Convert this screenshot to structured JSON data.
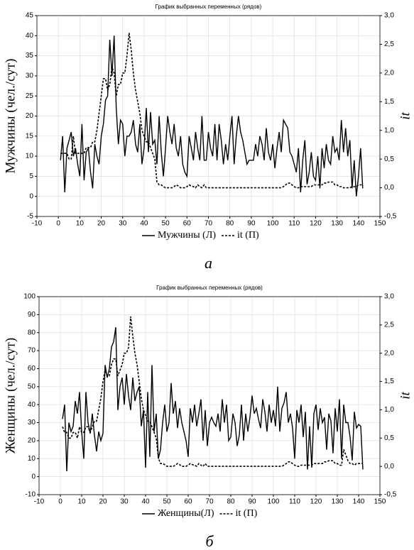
{
  "chart_data": [
    {
      "type": "line",
      "title": "График выбранных переменных (рядов)",
      "ylabel": "Мужчины (чел./сут)",
      "y2label": "it",
      "panel_label": "а",
      "grid": true,
      "x": [
        1,
        2,
        3,
        4,
        5,
        6,
        7,
        8,
        9,
        10,
        11,
        12,
        13,
        14,
        15,
        16,
        17,
        18,
        19,
        20,
        21,
        22,
        23,
        24,
        25,
        26,
        27,
        28,
        29,
        30,
        31,
        32,
        33,
        34,
        35,
        36,
        37,
        38,
        39,
        40,
        41,
        42,
        43,
        44,
        45,
        46,
        47,
        48,
        49,
        50,
        51,
        52,
        53,
        54,
        55,
        56,
        57,
        58,
        59,
        60,
        61,
        62,
        63,
        64,
        65,
        66,
        67,
        68,
        69,
        70,
        71,
        72,
        73,
        74,
        75,
        76,
        77,
        78,
        79,
        80,
        81,
        82,
        83,
        84,
        85,
        86,
        87,
        88,
        89,
        90,
        91,
        92,
        93,
        94,
        95,
        96,
        97,
        98,
        99,
        100,
        101,
        102,
        103,
        104,
        105,
        106,
        107,
        108,
        109,
        110,
        111,
        112,
        113,
        114,
        115,
        116,
        117,
        118,
        119,
        120,
        121,
        122,
        123,
        124,
        125,
        126,
        127,
        128,
        129,
        130,
        131,
        132,
        133,
        134,
        135,
        136,
        137,
        138,
        139,
        140,
        141,
        142
      ],
      "xlim": [
        -10,
        150
      ],
      "xticks": [
        -10,
        0,
        10,
        20,
        30,
        40,
        50,
        60,
        70,
        80,
        90,
        100,
        110,
        120,
        130,
        140,
        150
      ],
      "ylim": [
        -5,
        45
      ],
      "yticks": [
        -5,
        0,
        5,
        10,
        15,
        20,
        25,
        30,
        35,
        40,
        45
      ],
      "y2lim": [
        -0.5,
        3.0
      ],
      "y2ticks": [
        {
          "value": -0.5,
          "label": "-0,5"
        },
        {
          "value": 0,
          "label": "0,0"
        },
        {
          "value": 0.5,
          "label": "0,5"
        },
        {
          "value": 1,
          "label": "1,0"
        },
        {
          "value": 1.5,
          "label": "1,5"
        },
        {
          "value": 2,
          "label": "2,0"
        },
        {
          "value": 2.5,
          "label": "2,5"
        },
        {
          "value": 3,
          "label": "3,0"
        }
      ],
      "series": [
        {
          "name": "Мужчины (Л)",
          "color": "#000000",
          "line_style": "solid",
          "values": [
            9,
            15,
            1,
            12,
            14,
            16,
            10,
            12,
            8,
            5,
            18,
            4,
            11,
            12,
            6,
            2,
            13,
            10,
            8,
            15,
            18,
            24,
            25,
            39,
            30,
            40,
            22,
            13,
            19,
            18,
            10,
            15,
            15,
            16,
            19,
            13,
            11,
            18,
            8,
            12,
            22,
            11,
            21,
            13,
            14,
            8,
            20,
            11,
            5,
            12,
            20,
            16,
            13,
            18,
            12,
            10,
            15,
            8,
            6,
            5,
            15,
            12,
            9,
            16,
            12,
            9,
            20,
            9,
            9,
            16,
            12,
            10,
            18,
            9,
            18,
            14,
            8,
            13,
            9,
            15,
            20,
            8,
            15,
            20,
            16,
            14,
            11,
            8,
            9,
            9,
            9,
            13,
            10,
            15,
            13,
            9,
            17,
            11,
            9,
            13,
            7,
            12,
            16,
            11,
            19,
            18,
            17,
            11,
            10,
            8,
            6,
            12,
            1,
            9,
            14,
            3,
            6,
            11,
            5,
            4,
            10,
            2,
            12,
            7,
            13,
            9,
            8,
            15,
            11,
            12,
            9,
            19,
            11,
            17,
            10,
            14,
            2,
            9,
            0,
            5,
            12,
            2
          ]
        },
        {
          "name": "it (П)",
          "color": "#000000",
          "line_style": "dashed",
          "axis": "y2",
          "values": [
            0.6,
            0.6,
            0.6,
            0.6,
            0.5,
            0.5,
            0.9,
            0.6,
            0.6,
            0.6,
            0.6,
            0.6,
            0.7,
            0.7,
            0.7,
            0.8,
            0.8,
            1.0,
            1.3,
            1.6,
            1.9,
            1.9,
            1.7,
            1.8,
            2.1,
            2.0,
            1.6,
            1.8,
            1.8,
            2.0,
            2.0,
            2.3,
            2.7,
            2.4,
            2.0,
            1.7,
            1.5,
            1.3,
            1.0,
            0.9,
            0.8,
            0.8,
            0.7,
            0.6,
            0.5,
            0.1,
            0.05,
            0.05,
            0.02,
            0,
            0,
            0,
            0,
            0.02,
            0.05,
            0.03,
            0,
            0,
            0,
            0.02,
            0.05,
            0.03,
            0.02,
            0,
            0.05,
            0.02,
            0,
            0.05,
            0,
            0,
            0,
            0,
            0,
            0,
            0,
            0,
            0,
            0,
            0,
            0,
            0,
            0,
            0,
            0,
            0,
            0,
            0,
            0,
            0,
            0,
            0,
            0,
            0,
            0,
            0,
            0,
            0,
            0,
            0,
            0,
            0,
            0,
            0,
            0,
            0.02,
            0.05,
            0.08,
            0.08,
            0.05,
            0.02,
            0,
            0,
            0.02,
            0.02,
            0.02,
            0.02,
            0.02,
            0.02,
            0.05,
            0.05,
            0.05,
            0.05,
            0.05,
            0.08,
            0.08,
            0.1,
            0.1,
            0.1,
            0.05,
            0.05,
            0.02,
            0.02,
            0,
            0,
            0,
            0,
            0.02,
            0.02,
            0.02,
            0.05,
            0.05,
            0.05
          ]
        }
      ]
    },
    {
      "type": "line",
      "title": "График выбранных переменных (рядов)",
      "ylabel": "Женщины (чел./сут)",
      "y2label": "it",
      "panel_label": "б",
      "grid": true,
      "x": [
        1,
        2,
        3,
        4,
        5,
        6,
        7,
        8,
        9,
        10,
        11,
        12,
        13,
        14,
        15,
        16,
        17,
        18,
        19,
        20,
        21,
        22,
        23,
        24,
        25,
        26,
        27,
        28,
        29,
        30,
        31,
        32,
        33,
        34,
        35,
        36,
        37,
        38,
        39,
        40,
        41,
        42,
        43,
        44,
        45,
        46,
        47,
        48,
        49,
        50,
        51,
        52,
        53,
        54,
        55,
        56,
        57,
        58,
        59,
        60,
        61,
        62,
        63,
        64,
        65,
        66,
        67,
        68,
        69,
        70,
        71,
        72,
        73,
        74,
        75,
        76,
        77,
        78,
        79,
        80,
        81,
        82,
        83,
        84,
        85,
        86,
        87,
        88,
        89,
        90,
        91,
        92,
        93,
        94,
        95,
        96,
        97,
        98,
        99,
        100,
        101,
        102,
        103,
        104,
        105,
        106,
        107,
        108,
        109,
        110,
        111,
        112,
        113,
        114,
        115,
        116,
        117,
        118,
        119,
        120,
        121,
        122,
        123,
        124,
        125,
        126,
        127,
        128,
        129,
        130,
        131,
        132,
        133,
        134,
        135,
        136,
        137,
        138,
        139,
        140,
        141,
        142
      ],
      "xlim": [
        -10,
        150
      ],
      "xticks": [
        -10,
        0,
        10,
        20,
        30,
        40,
        50,
        60,
        70,
        80,
        90,
        100,
        110,
        120,
        130,
        140,
        150
      ],
      "ylim": [
        -10,
        100
      ],
      "yticks": [
        -10,
        0,
        10,
        20,
        30,
        40,
        50,
        60,
        70,
        80,
        90,
        100
      ],
      "y2lim": [
        -0.5,
        3.0
      ],
      "y2ticks": [
        {
          "value": -0.5,
          "label": "-0,5"
        },
        {
          "value": 0,
          "label": "0,0"
        },
        {
          "value": 0.5,
          "label": "0,5"
        },
        {
          "value": 1,
          "label": "1,0"
        },
        {
          "value": 1.5,
          "label": "1,5"
        },
        {
          "value": 2,
          "label": "2,0"
        },
        {
          "value": 2.5,
          "label": "2,5"
        },
        {
          "value": 3,
          "label": "3,0"
        }
      ],
      "series": [
        {
          "name": "Женщины(Л)",
          "color": "#000000",
          "line_style": "solid",
          "values": [
            32,
            40,
            3,
            30,
            25,
            28,
            42,
            35,
            47,
            25,
            10,
            47,
            30,
            24,
            35,
            23,
            14,
            25,
            20,
            24,
            62,
            55,
            60,
            72,
            75,
            83,
            37,
            50,
            55,
            40,
            57,
            45,
            37,
            55,
            42,
            47,
            50,
            28,
            37,
            5,
            47,
            11,
            62,
            25,
            35,
            10,
            15,
            30,
            40,
            25,
            30,
            52,
            35,
            42,
            27,
            38,
            30,
            25,
            20,
            11,
            38,
            30,
            40,
            28,
            35,
            43,
            20,
            37,
            17,
            30,
            33,
            30,
            28,
            35,
            25,
            43,
            30,
            40,
            20,
            22,
            35,
            30,
            17,
            23,
            40,
            20,
            35,
            25,
            33,
            45,
            35,
            38,
            32,
            27,
            43,
            36,
            25,
            40,
            30,
            37,
            28,
            50,
            25,
            38,
            41,
            47,
            30,
            35,
            27,
            10,
            37,
            30,
            40,
            22,
            36,
            4,
            28,
            5,
            35,
            40,
            26,
            38,
            30,
            33,
            15,
            35,
            31,
            13,
            38,
            25,
            43,
            10,
            40,
            30,
            30,
            22,
            9,
            36,
            27,
            29,
            28,
            4
          ]
        },
        {
          "name": "it (П)",
          "color": "#000000",
          "line_style": "dashed",
          "axis": "y2",
          "values": [
            0.7,
            0.6,
            0.6,
            0.5,
            0.5,
            0.6,
            0.6,
            0.5,
            0.7,
            0.6,
            0.6,
            0.7,
            0.7,
            0.6,
            0.7,
            0.8,
            0.8,
            1.0,
            1.2,
            1.5,
            1.7,
            1.6,
            1.6,
            1.8,
            1.9,
            1.9,
            1.6,
            1.7,
            1.8,
            2.0,
            2.0,
            2.1,
            2.65,
            2.3,
            2.0,
            1.8,
            1.5,
            1.2,
            1.0,
            0.9,
            0.8,
            0.8,
            0.7,
            0.6,
            0.5,
            0.15,
            0.05,
            0.05,
            0.03,
            0,
            0,
            0,
            0,
            0.02,
            0.05,
            0.03,
            0,
            0,
            0,
            0.02,
            0.05,
            0.03,
            0.02,
            0,
            0.05,
            0.02,
            0,
            0.05,
            0,
            0,
            0,
            0,
            0,
            0,
            0,
            0,
            0,
            0,
            0,
            0,
            0,
            0,
            0,
            0,
            0,
            0,
            0,
            0,
            0,
            0,
            0,
            0,
            0,
            0,
            0,
            0,
            0,
            0,
            0,
            0,
            0,
            0,
            0,
            0,
            0.02,
            0.05,
            0.08,
            0.08,
            0.05,
            0.02,
            0,
            0,
            0.02,
            0.02,
            0.02,
            0.02,
            0.02,
            0.02,
            0.05,
            0.05,
            0.05,
            0.05,
            0.05,
            0.08,
            0.08,
            0.1,
            0.1,
            0.1,
            0.05,
            0.05,
            0.02,
            0.02,
            0.3,
            0.2,
            0.1,
            0.05,
            0.05,
            0.02,
            0.05,
            0.05,
            0.05,
            0.05
          ]
        }
      ]
    }
  ]
}
